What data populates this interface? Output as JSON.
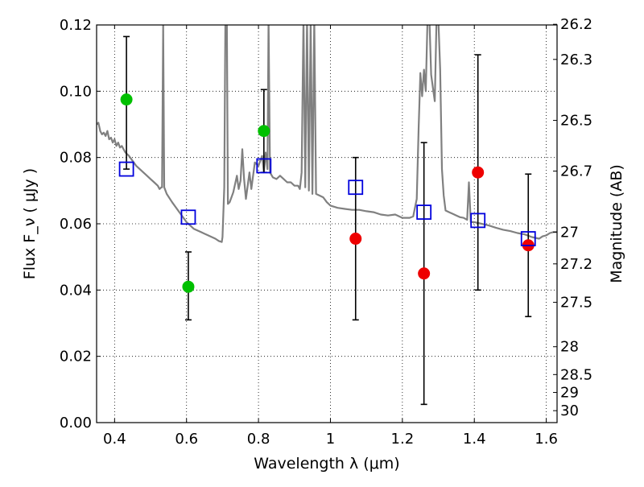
{
  "chart_data": {
    "type": "scatter",
    "title": "",
    "xlabel": "Wavelength  λ (μm)",
    "ylabel": "Flux  F_ν  ( μJy )",
    "y2label": "Magnitude (AB)",
    "xlim": [
      0.35,
      1.63
    ],
    "ylim": [
      0.0,
      0.12
    ],
    "grid": true,
    "x_ticks": [
      0.4,
      0.6,
      0.8,
      1.0,
      1.2,
      1.4,
      1.6
    ],
    "x_tick_labels": [
      "0.4",
      "0.6",
      "0.8",
      "1",
      "1.2",
      "1.4",
      "1.6"
    ],
    "y_ticks": [
      0.0,
      0.02,
      0.04,
      0.06,
      0.08,
      0.1,
      0.12
    ],
    "y_tick_labels": [
      "0.00",
      "0.02",
      "0.04",
      "0.06",
      "0.08",
      "0.10",
      "0.12"
    ],
    "y2_ticks": [
      {
        "label": "26.2",
        "flux": 0.1202
      },
      {
        "label": "26.3",
        "flux": 0.1096
      },
      {
        "label": "26.5",
        "flux": 0.0912
      },
      {
        "label": "26.7",
        "flux": 0.0759
      },
      {
        "label": "27",
        "flux": 0.0575
      },
      {
        "label": "27.2",
        "flux": 0.0479
      },
      {
        "label": "27.5",
        "flux": 0.0363
      },
      {
        "label": "28",
        "flux": 0.0229
      },
      {
        "label": "28.5",
        "flux": 0.0145
      },
      {
        "label": "29",
        "flux": 0.0091
      },
      {
        "label": "30",
        "flux": 0.0036
      }
    ],
    "series": [
      {
        "kind": "line",
        "color": "#808080",
        "points": [
          [
            0.35,
            0.09
          ],
          [
            0.355,
            0.0905
          ],
          [
            0.36,
            0.088
          ],
          [
            0.365,
            0.087
          ],
          [
            0.37,
            0.0875
          ],
          [
            0.375,
            0.0865
          ],
          [
            0.38,
            0.088
          ],
          [
            0.385,
            0.0855
          ],
          [
            0.39,
            0.086
          ],
          [
            0.395,
            0.0845
          ],
          [
            0.4,
            0.0855
          ],
          [
            0.405,
            0.0835
          ],
          [
            0.41,
            0.0845
          ],
          [
            0.415,
            0.083
          ],
          [
            0.42,
            0.0835
          ],
          [
            0.425,
            0.0825
          ],
          [
            0.43,
            0.0815
          ],
          [
            0.44,
            0.0805
          ],
          [
            0.45,
            0.079
          ],
          [
            0.46,
            0.0775
          ],
          [
            0.47,
            0.0765
          ],
          [
            0.48,
            0.0755
          ],
          [
            0.49,
            0.0745
          ],
          [
            0.5,
            0.0735
          ],
          [
            0.51,
            0.0725
          ],
          [
            0.52,
            0.0715
          ],
          [
            0.525,
            0.0705
          ],
          [
            0.53,
            0.071
          ],
          [
            0.532,
            0.071
          ],
          [
            0.535,
            0.12
          ],
          [
            0.538,
            0.071
          ],
          [
            0.545,
            0.069
          ],
          [
            0.56,
            0.0665
          ],
          [
            0.58,
            0.0635
          ],
          [
            0.6,
            0.0605
          ],
          [
            0.62,
            0.0585
          ],
          [
            0.64,
            0.0575
          ],
          [
            0.66,
            0.0565
          ],
          [
            0.68,
            0.0555
          ],
          [
            0.69,
            0.0548
          ],
          [
            0.698,
            0.0545
          ],
          [
            0.7,
            0.056
          ],
          [
            0.705,
            0.071
          ],
          [
            0.708,
            0.122
          ],
          [
            0.712,
            0.122
          ],
          [
            0.715,
            0.066
          ],
          [
            0.72,
            0.0665
          ],
          [
            0.73,
            0.0695
          ],
          [
            0.74,
            0.0745
          ],
          [
            0.745,
            0.0705
          ],
          [
            0.75,
            0.073
          ],
          [
            0.755,
            0.0825
          ],
          [
            0.76,
            0.0735
          ],
          [
            0.765,
            0.0675
          ],
          [
            0.77,
            0.0715
          ],
          [
            0.775,
            0.0755
          ],
          [
            0.78,
            0.0705
          ],
          [
            0.785,
            0.0745
          ],
          [
            0.79,
            0.0785
          ],
          [
            0.8,
            0.0775
          ],
          [
            0.81,
            0.0805
          ],
          [
            0.815,
            0.0755
          ],
          [
            0.82,
            0.0815
          ],
          [
            0.825,
            0.0765
          ],
          [
            0.828,
            0.122
          ],
          [
            0.832,
            0.0755
          ],
          [
            0.84,
            0.074
          ],
          [
            0.85,
            0.0735
          ],
          [
            0.86,
            0.0745
          ],
          [
            0.87,
            0.0735
          ],
          [
            0.88,
            0.0725
          ],
          [
            0.89,
            0.0725
          ],
          [
            0.9,
            0.0715
          ],
          [
            0.91,
            0.0715
          ],
          [
            0.915,
            0.0705
          ],
          [
            0.92,
            0.0755
          ],
          [
            0.925,
            0.122
          ],
          [
            0.93,
            0.071
          ],
          [
            0.935,
            0.122
          ],
          [
            0.94,
            0.07
          ],
          [
            0.945,
            0.122
          ],
          [
            0.95,
            0.069
          ],
          [
            0.955,
            0.122
          ],
          [
            0.96,
            0.069
          ],
          [
            0.97,
            0.0685
          ],
          [
            0.98,
            0.068
          ],
          [
            0.99,
            0.0665
          ],
          [
            1.0,
            0.0655
          ],
          [
            1.02,
            0.0648
          ],
          [
            1.04,
            0.0645
          ],
          [
            1.06,
            0.0642
          ],
          [
            1.08,
            0.0642
          ],
          [
            1.1,
            0.0638
          ],
          [
            1.12,
            0.0635
          ],
          [
            1.14,
            0.0628
          ],
          [
            1.16,
            0.0625
          ],
          [
            1.18,
            0.0628
          ],
          [
            1.2,
            0.0618
          ],
          [
            1.22,
            0.0618
          ],
          [
            1.23,
            0.0622
          ],
          [
            1.24,
            0.0675
          ],
          [
            1.245,
            0.0885
          ],
          [
            1.25,
            0.1055
          ],
          [
            1.255,
            0.0985
          ],
          [
            1.26,
            0.1065
          ],
          [
            1.265,
            0.1
          ],
          [
            1.27,
            0.122
          ],
          [
            1.275,
            0.122
          ],
          [
            1.28,
            0.105
          ],
          [
            1.285,
            0.101
          ],
          [
            1.29,
            0.097
          ],
          [
            1.295,
            0.122
          ],
          [
            1.3,
            0.122
          ],
          [
            1.305,
            0.1065
          ],
          [
            1.31,
            0.0765
          ],
          [
            1.315,
            0.0685
          ],
          [
            1.32,
            0.064
          ],
          [
            1.33,
            0.0635
          ],
          [
            1.34,
            0.063
          ],
          [
            1.35,
            0.0625
          ],
          [
            1.36,
            0.062
          ],
          [
            1.37,
            0.0618
          ],
          [
            1.38,
            0.0612
          ],
          [
            1.385,
            0.0725
          ],
          [
            1.39,
            0.0605
          ],
          [
            1.4,
            0.0605
          ],
          [
            1.42,
            0.06
          ],
          [
            1.44,
            0.0595
          ],
          [
            1.46,
            0.0588
          ],
          [
            1.48,
            0.0582
          ],
          [
            1.5,
            0.0578
          ],
          [
            1.52,
            0.0572
          ],
          [
            1.54,
            0.0568
          ],
          [
            1.56,
            0.056
          ],
          [
            1.58,
            0.0555
          ],
          [
            1.59,
            0.0562
          ],
          [
            1.6,
            0.0565
          ],
          [
            1.61,
            0.0572
          ],
          [
            1.62,
            0.0575
          ],
          [
            1.63,
            0.0575
          ]
        ]
      },
      {
        "kind": "errorbar",
        "color": "#000000",
        "points": [
          {
            "x": 0.433,
            "lo": 0.0765,
            "hi": 0.1165
          },
          {
            "x": 0.605,
            "lo": 0.031,
            "hi": 0.0515
          },
          {
            "x": 0.815,
            "lo": 0.0755,
            "hi": 0.1005
          },
          {
            "x": 1.07,
            "lo": 0.031,
            "hi": 0.08
          },
          {
            "x": 1.26,
            "lo": 0.0055,
            "hi": 0.0845
          },
          {
            "x": 1.41,
            "lo": 0.04,
            "hi": 0.111
          },
          {
            "x": 1.55,
            "lo": 0.032,
            "hi": 0.075
          }
        ]
      },
      {
        "kind": "scatter",
        "marker": "circle",
        "color": "#00c000",
        "points": [
          [
            0.433,
            0.0975
          ],
          [
            0.605,
            0.041
          ],
          [
            0.815,
            0.088
          ]
        ]
      },
      {
        "kind": "scatter",
        "marker": "circle",
        "color": "#ee0000",
        "points": [
          [
            1.07,
            0.0555
          ],
          [
            1.26,
            0.045
          ],
          [
            1.41,
            0.0755
          ],
          [
            1.55,
            0.0535
          ]
        ]
      },
      {
        "kind": "scatter",
        "marker": "square",
        "color": "#0000dd",
        "points": [
          [
            0.433,
            0.0765
          ],
          [
            0.605,
            0.062
          ],
          [
            0.815,
            0.0775
          ],
          [
            1.07,
            0.071
          ],
          [
            1.26,
            0.0635
          ],
          [
            1.41,
            0.061
          ],
          [
            1.55,
            0.0555
          ]
        ]
      }
    ]
  }
}
